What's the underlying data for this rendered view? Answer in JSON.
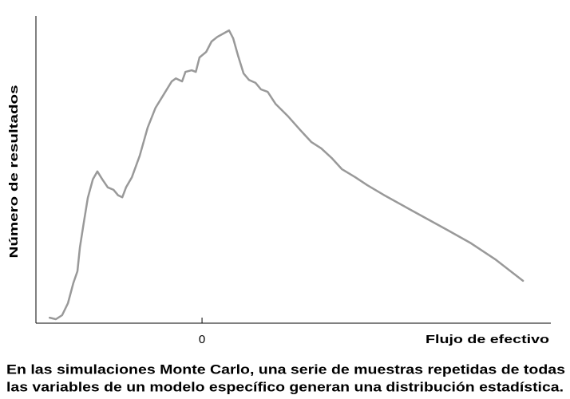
{
  "chart_data": {
    "type": "line",
    "ylabel": "Número de resultados",
    "xlabel": "Flujo de efectivo",
    "caption": [
      "En las simulaciones Monte Carlo, una serie de muestras repetidas de todas",
      "las variables de un modelo específico generan una distribución estadística."
    ],
    "xlim": [
      -4,
      8.4
    ],
    "xticks": [
      0
    ],
    "ylim": [
      0,
      100
    ],
    "series": [
      {
        "color": "#999999",
        "x": [
          -3.67,
          -3.52,
          -3.37,
          -3.23,
          -3.1,
          -3.0,
          -2.94,
          -2.85,
          -2.75,
          -2.63,
          -2.52,
          -2.4,
          -2.27,
          -2.13,
          -2.02,
          -1.92,
          -1.83,
          -1.69,
          -1.5,
          -1.31,
          -1.12,
          -0.92,
          -0.73,
          -0.63,
          -0.48,
          -0.4,
          -0.25,
          -0.15,
          -0.06,
          0.1,
          0.23,
          0.37,
          0.52,
          0.65,
          0.75,
          0.87,
          1.0,
          1.13,
          1.29,
          1.42,
          1.58,
          1.77,
          2.06,
          2.35,
          2.63,
          2.87,
          3.12,
          3.37,
          3.69,
          3.98,
          4.37,
          5.13,
          5.9,
          6.48,
          7.06,
          7.73
        ],
        "values": [
          1.8,
          1.3,
          2.6,
          6.5,
          13.0,
          16.9,
          24.7,
          32.5,
          40.8,
          46.8,
          49.4,
          46.8,
          44.2,
          43.4,
          41.6,
          41.0,
          44.2,
          47.5,
          54.5,
          63.6,
          70.1,
          74.5,
          78.7,
          79.7,
          78.7,
          81.8,
          82.3,
          81.8,
          86.5,
          88.3,
          91.7,
          93.2,
          94.3,
          95.3,
          92.7,
          87.0,
          81.3,
          79.2,
          78.2,
          76.1,
          75.3,
          71.4,
          67.5,
          63.1,
          59.0,
          56.9,
          53.8,
          50.1,
          47.5,
          44.9,
          41.8,
          36.1,
          30.4,
          26.0,
          20.8,
          13.8
        ]
      }
    ]
  }
}
